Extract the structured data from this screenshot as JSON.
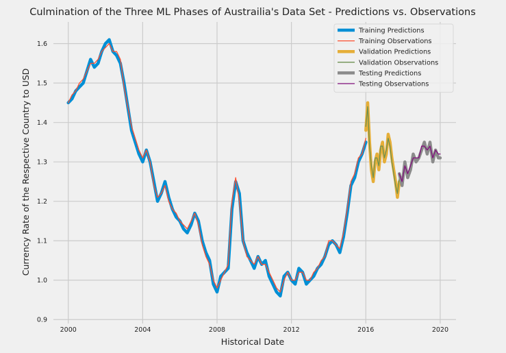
{
  "chart_data": {
    "type": "line",
    "title": "Culmination of the Three ML Phases of Austrailia's Data Set - Predictions vs. Observations",
    "xlabel": "Historical Date",
    "ylabel": "Currency Rate of the Respective Country to USD",
    "xlim": [
      1999.2,
      2020.85
    ],
    "ylim": [
      0.89,
      1.655
    ],
    "x_ticks": [
      2000,
      2004,
      2008,
      2012,
      2016,
      2020
    ],
    "x_tick_labels": [
      "2000",
      "2004",
      "2008",
      "2012",
      "2016",
      "2020"
    ],
    "y_ticks": [
      0.9,
      1.0,
      1.1,
      1.2,
      1.3,
      1.4,
      1.5,
      1.6
    ],
    "y_tick_labels": [
      "0.9",
      "1.0",
      "1.1",
      "1.2",
      "1.3",
      "1.4",
      "1.5",
      "1.6"
    ],
    "grid": true,
    "legend_position": "top-right",
    "series": [
      {
        "name": "Training Predictions",
        "color": "#008fd5",
        "style": "thick",
        "x": [
          2000.0,
          2000.2,
          2000.4,
          2000.6,
          2000.8,
          2001.0,
          2001.2,
          2001.4,
          2001.6,
          2001.8,
          2002.0,
          2002.2,
          2002.4,
          2002.6,
          2002.8,
          2003.0,
          2003.2,
          2003.4,
          2003.6,
          2003.8,
          2004.0,
          2004.2,
          2004.4,
          2004.6,
          2004.8,
          2005.0,
          2005.2,
          2005.4,
          2005.6,
          2005.8,
          2006.0,
          2006.2,
          2006.4,
          2006.6,
          2006.8,
          2007.0,
          2007.2,
          2007.4,
          2007.6,
          2007.8,
          2008.0,
          2008.2,
          2008.4,
          2008.6,
          2008.8,
          2009.0,
          2009.2,
          2009.4,
          2009.6,
          2009.8,
          2010.0,
          2010.2,
          2010.4,
          2010.6,
          2010.8,
          2011.0,
          2011.2,
          2011.4,
          2011.6,
          2011.8,
          2012.0,
          2012.2,
          2012.4,
          2012.6,
          2012.8,
          2013.0,
          2013.2,
          2013.4,
          2013.6,
          2013.8,
          2014.0,
          2014.2,
          2014.4,
          2014.6,
          2014.8,
          2015.0,
          2015.2,
          2015.4,
          2015.6,
          2015.8,
          2016.0
        ],
        "y": [
          1.45,
          1.46,
          1.48,
          1.49,
          1.5,
          1.53,
          1.56,
          1.54,
          1.55,
          1.58,
          1.6,
          1.61,
          1.58,
          1.57,
          1.55,
          1.5,
          1.44,
          1.38,
          1.35,
          1.32,
          1.3,
          1.33,
          1.3,
          1.25,
          1.2,
          1.22,
          1.25,
          1.21,
          1.18,
          1.16,
          1.15,
          1.13,
          1.12,
          1.14,
          1.17,
          1.15,
          1.1,
          1.07,
          1.05,
          0.99,
          0.97,
          1.01,
          1.02,
          1.03,
          1.18,
          1.25,
          1.22,
          1.1,
          1.07,
          1.05,
          1.03,
          1.06,
          1.04,
          1.05,
          1.01,
          0.99,
          0.97,
          0.96,
          1.01,
          1.02,
          1.0,
          0.99,
          1.03,
          1.02,
          0.99,
          1.0,
          1.01,
          1.03,
          1.04,
          1.06,
          1.09,
          1.1,
          1.09,
          1.07,
          1.11,
          1.17,
          1.24,
          1.26,
          1.3,
          1.32,
          1.35
        ]
      },
      {
        "name": "Training Observations",
        "color": "#fc4f30",
        "style": "thin",
        "x": [
          2000.0,
          2000.2,
          2000.4,
          2000.6,
          2000.8,
          2001.0,
          2001.2,
          2001.4,
          2001.6,
          2001.8,
          2002.0,
          2002.2,
          2002.4,
          2002.6,
          2002.8,
          2003.0,
          2003.2,
          2003.4,
          2003.6,
          2003.8,
          2004.0,
          2004.2,
          2004.4,
          2004.6,
          2004.8,
          2005.0,
          2005.2,
          2005.4,
          2005.6,
          2005.8,
          2006.0,
          2006.2,
          2006.4,
          2006.6,
          2006.8,
          2007.0,
          2007.2,
          2007.4,
          2007.6,
          2007.8,
          2008.0,
          2008.2,
          2008.4,
          2008.6,
          2008.8,
          2009.0,
          2009.2,
          2009.4,
          2009.6,
          2009.8,
          2010.0,
          2010.2,
          2010.4,
          2010.6,
          2010.8,
          2011.0,
          2011.2,
          2011.4,
          2011.6,
          2011.8,
          2012.0,
          2012.2,
          2012.4,
          2012.6,
          2012.8,
          2013.0,
          2013.2,
          2013.4,
          2013.6,
          2013.8,
          2014.0,
          2014.2,
          2014.4,
          2014.6,
          2014.8,
          2015.0,
          2015.2,
          2015.4,
          2015.6,
          2015.8,
          2016.0
        ],
        "y": [
          1.45,
          1.47,
          1.48,
          1.5,
          1.51,
          1.53,
          1.55,
          1.55,
          1.56,
          1.58,
          1.59,
          1.6,
          1.58,
          1.58,
          1.56,
          1.49,
          1.44,
          1.39,
          1.36,
          1.33,
          1.31,
          1.33,
          1.3,
          1.24,
          1.21,
          1.22,
          1.24,
          1.2,
          1.18,
          1.17,
          1.15,
          1.14,
          1.13,
          1.15,
          1.17,
          1.14,
          1.09,
          1.06,
          1.04,
          1.0,
          0.98,
          1.0,
          1.02,
          1.04,
          1.2,
          1.26,
          1.2,
          1.1,
          1.06,
          1.05,
          1.04,
          1.06,
          1.04,
          1.04,
          1.02,
          1.0,
          0.98,
          0.97,
          1.0,
          1.02,
          1.0,
          1.0,
          1.02,
          1.02,
          1.0,
          1.0,
          1.02,
          1.03,
          1.05,
          1.06,
          1.1,
          1.1,
          1.09,
          1.08,
          1.12,
          1.18,
          1.25,
          1.27,
          1.31,
          1.32,
          1.36
        ]
      },
      {
        "name": "Validation Predictions",
        "color": "#e5ae38",
        "style": "thick",
        "x": [
          2016.0,
          2016.1,
          2016.2,
          2016.3,
          2016.4,
          2016.5,
          2016.6,
          2016.7,
          2016.8,
          2016.9,
          2017.0,
          2017.1,
          2017.2,
          2017.3,
          2017.4,
          2017.5,
          2017.6,
          2017.7,
          2017.8
        ],
        "y": [
          1.38,
          1.45,
          1.35,
          1.28,
          1.25,
          1.3,
          1.32,
          1.28,
          1.33,
          1.35,
          1.3,
          1.32,
          1.37,
          1.35,
          1.31,
          1.28,
          1.25,
          1.21,
          1.25
        ]
      },
      {
        "name": "Validation Observations",
        "color": "#6d904f",
        "style": "thin",
        "x": [
          2016.0,
          2016.1,
          2016.2,
          2016.3,
          2016.4,
          2016.5,
          2016.6,
          2016.7,
          2016.8,
          2016.9,
          2017.0,
          2017.1,
          2017.2,
          2017.3,
          2017.4,
          2017.5,
          2017.6,
          2017.7,
          2017.8
        ],
        "y": [
          1.39,
          1.44,
          1.34,
          1.29,
          1.26,
          1.31,
          1.31,
          1.29,
          1.34,
          1.34,
          1.31,
          1.33,
          1.36,
          1.34,
          1.3,
          1.27,
          1.24,
          1.22,
          1.26
        ]
      },
      {
        "name": "Testing Predictions",
        "color": "#8b8b8b",
        "style": "thick",
        "x": [
          2017.8,
          2017.95,
          2018.1,
          2018.25,
          2018.4,
          2018.55,
          2018.7,
          2018.85,
          2019.0,
          2019.15,
          2019.3,
          2019.45,
          2019.6,
          2019.75,
          2019.9,
          2020.0
        ],
        "y": [
          1.27,
          1.24,
          1.3,
          1.26,
          1.28,
          1.32,
          1.3,
          1.31,
          1.33,
          1.35,
          1.32,
          1.35,
          1.3,
          1.33,
          1.31,
          1.31
        ]
      },
      {
        "name": "Testing Observations",
        "color": "#810f7c",
        "style": "thin",
        "x": [
          2017.8,
          2017.95,
          2018.1,
          2018.25,
          2018.4,
          2018.55,
          2018.7,
          2018.85,
          2019.0,
          2019.15,
          2019.3,
          2019.45,
          2019.6,
          2019.75,
          2019.9,
          2020.0
        ],
        "y": [
          1.27,
          1.25,
          1.29,
          1.27,
          1.29,
          1.31,
          1.31,
          1.31,
          1.34,
          1.34,
          1.33,
          1.34,
          1.31,
          1.33,
          1.32,
          1.32
        ]
      }
    ]
  }
}
